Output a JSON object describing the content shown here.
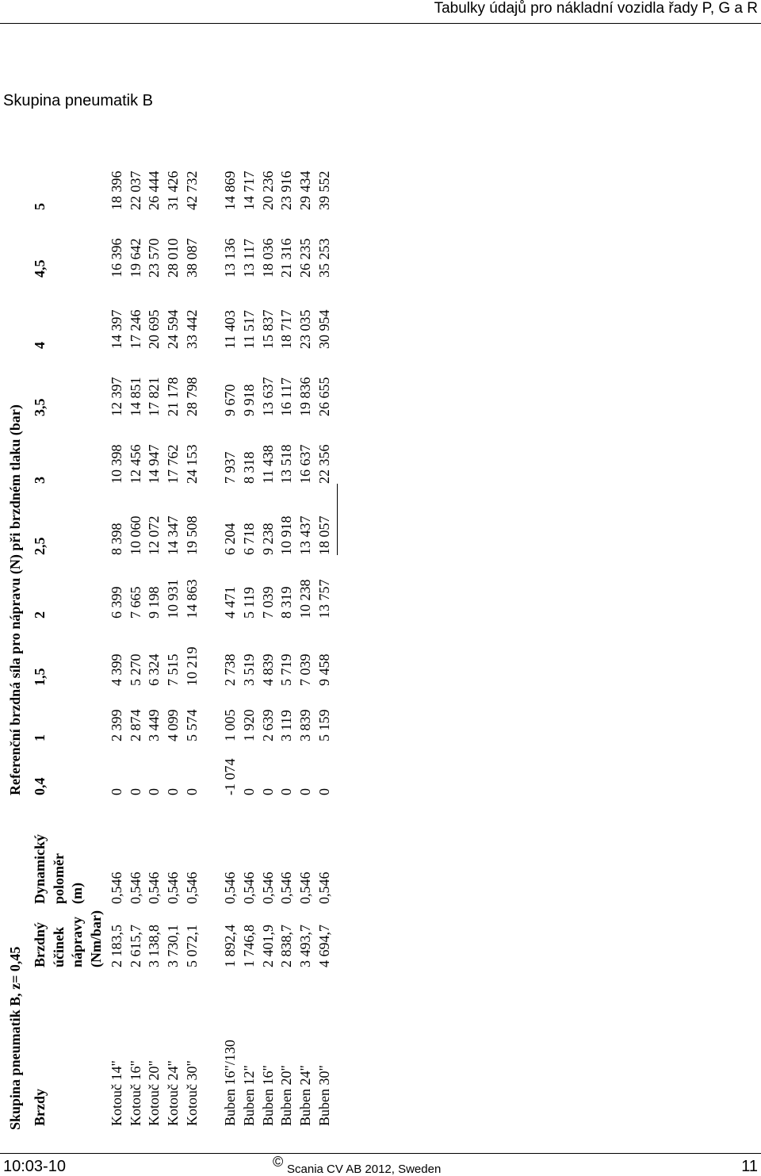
{
  "header": {
    "title": "Tabulky údajů pro nákladní vozidla řady P, G a R"
  },
  "section_title": "Skupina pneumatik B",
  "table": {
    "title": "Skupina pneumatik B, z= 0,45",
    "group_header": "Referenční brzdná síla pro nápravu (N) při brzdném tlaku (bar)",
    "columns": [
      [
        "Brzdy"
      ],
      [
        "Brzdný",
        "účinek",
        "nápravy",
        "(Nm/bar)"
      ],
      [
        "Dynamický",
        "poloměr",
        "(m)"
      ],
      [
        "0,4"
      ],
      [
        "1"
      ],
      [
        "1,5"
      ],
      [
        "2"
      ],
      [
        "2,5"
      ],
      [
        "3"
      ],
      [
        "3,5"
      ],
      [
        "4"
      ],
      [
        "4,5"
      ],
      [
        "5"
      ]
    ],
    "rows": [
      [
        "Kotouč 14\"",
        "2 183,5",
        "0,546",
        "0",
        "2 399",
        "4 399",
        "6 399",
        "8 398",
        "10 398",
        "12 397",
        "14 397",
        "16 396",
        "18 396"
      ],
      [
        "Kotouč 16\"",
        "2 615,7",
        "0,546",
        "0",
        "2 874",
        "5 270",
        "7 665",
        "10 060",
        "12 456",
        "14 851",
        "17 246",
        "19 642",
        "22 037"
      ],
      [
        "Kotouč 20\"",
        "3 138,8",
        "0,546",
        "0",
        "3 449",
        "6 324",
        "9 198",
        "12 072",
        "14 947",
        "17 821",
        "20 695",
        "23 570",
        "26 444"
      ],
      [
        "Kotouč 24\"",
        "3 730,1",
        "0,546",
        "0",
        "4 099",
        "7 515",
        "10 931",
        "14 347",
        "17 762",
        "21 178",
        "24 594",
        "28 010",
        "31 426"
      ],
      [
        "Kotouč 30\"",
        "5 072,1",
        "0,546",
        "0",
        "5 574",
        "10 219",
        "14 863",
        "19 508",
        "24 153",
        "28 798",
        "33 442",
        "38 087",
        "42 732"
      ],
      [
        "Buben 16\"/130",
        "1 892,4",
        "0,546",
        "-1 074",
        "1 005",
        "2 738",
        "4 471",
        "6 204",
        "7 937",
        "9 670",
        "11 403",
        "13 136",
        "14 869"
      ],
      [
        "Buben 12\"",
        "1 746,8",
        "0,546",
        "0",
        "1 920",
        "3 519",
        "5 119",
        "6 718",
        "8 318",
        "9 918",
        "11 517",
        "13 117",
        "14 717"
      ],
      [
        "Buben 16\"",
        "2 401,9",
        "0,546",
        "0",
        "2 639",
        "4 839",
        "7 039",
        "9 238",
        "11 438",
        "13 637",
        "15 837",
        "18 036",
        "20 236"
      ],
      [
        "Buben 20\"",
        "2 838,7",
        "0,546",
        "0",
        "3 119",
        "5 719",
        "8 319",
        "10 918",
        "13 518",
        "16 117",
        "18 717",
        "21 316",
        "23 916"
      ],
      [
        "Buben 24\"",
        "3 493,7",
        "0,546",
        "0",
        "3 839",
        "7 039",
        "10 238",
        "13 437",
        "16 637",
        "19 836",
        "23 035",
        "26 235",
        "29 434"
      ],
      [
        "Buben 30\"",
        "4 694,7",
        "0,546",
        "0",
        "5 159",
        "9 458",
        "13 757",
        "18 057",
        "22 356",
        "26 655",
        "30 954",
        "35 253",
        "39 552"
      ]
    ]
  },
  "footer": {
    "date": "10:03-10",
    "copyright_symbol": "©",
    "copyright": "Scania CV AB 2012, Sweden",
    "page": "11"
  }
}
